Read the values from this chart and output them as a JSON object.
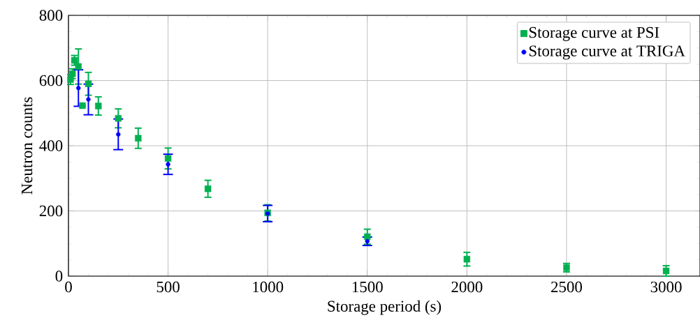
{
  "chart_data": {
    "type": "scatter",
    "xlabel": "Storage period (s)",
    "ylabel": "Neutron counts",
    "x": [
      10,
      20,
      30,
      50,
      70,
      100,
      150,
      250,
      350,
      500,
      700,
      1000,
      1500,
      2000,
      2500,
      3000
    ],
    "series": [
      {
        "name": "Storage curve at PSI",
        "color": "#00b050",
        "marker": "square",
        "values": [
          603,
          621,
          662,
          643,
          523,
          590,
          522,
          484,
          423,
          361,
          268,
          194,
          121,
          52,
          26,
          16
        ],
        "errors": [
          15,
          15,
          15,
          54,
          null,
          35,
          28,
          29,
          31,
          32,
          26,
          25,
          23,
          21,
          13,
          16
        ]
      },
      {
        "name": "Storage curve at TRIGA",
        "color": "#0000ff",
        "marker": "circle",
        "x": [
          50,
          100,
          250,
          500,
          1000,
          1500
        ],
        "values": [
          577,
          542,
          435,
          343,
          192,
          107
        ],
        "errors": [
          56,
          47,
          47,
          31,
          25,
          13
        ]
      }
    ],
    "xlim": [
      0,
      3170
    ],
    "ylim": [
      0,
      800
    ],
    "xticks": [
      0,
      500,
      1000,
      1500,
      2000,
      2500,
      3000
    ],
    "yticks": [
      0,
      200,
      400,
      600,
      800
    ],
    "grid": true,
    "legend": "top right"
  }
}
